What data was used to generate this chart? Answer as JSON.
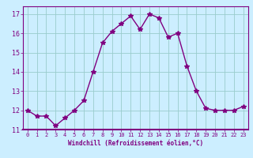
{
  "x": [
    0,
    1,
    2,
    3,
    4,
    5,
    6,
    7,
    8,
    9,
    10,
    11,
    12,
    13,
    14,
    15,
    16,
    17,
    18,
    19,
    20,
    21,
    22,
    23
  ],
  "y": [
    12.0,
    11.7,
    11.7,
    11.2,
    11.6,
    12.0,
    12.5,
    14.0,
    15.5,
    16.1,
    16.5,
    16.9,
    16.2,
    17.0,
    16.8,
    15.8,
    16.0,
    14.3,
    13.0,
    12.1,
    12.0,
    12.0,
    12.0,
    12.2
  ],
  "line_color": "#800080",
  "marker": "*",
  "marker_size": 4,
  "bg_color": "#cceeff",
  "grid_color": "#99cccc",
  "xlabel": "Windchill (Refroidissement éolien,°C)",
  "xlabel_color": "#800080",
  "tick_color": "#800080",
  "spine_color": "#800080",
  "ylim": [
    11.0,
    17.4
  ],
  "yticks": [
    11,
    12,
    13,
    14,
    15,
    16,
    17
  ],
  "xlim": [
    -0.5,
    23.5
  ],
  "xticks": [
    0,
    1,
    2,
    3,
    4,
    5,
    6,
    7,
    8,
    9,
    10,
    11,
    12,
    13,
    14,
    15,
    16,
    17,
    18,
    19,
    20,
    21,
    22,
    23
  ]
}
